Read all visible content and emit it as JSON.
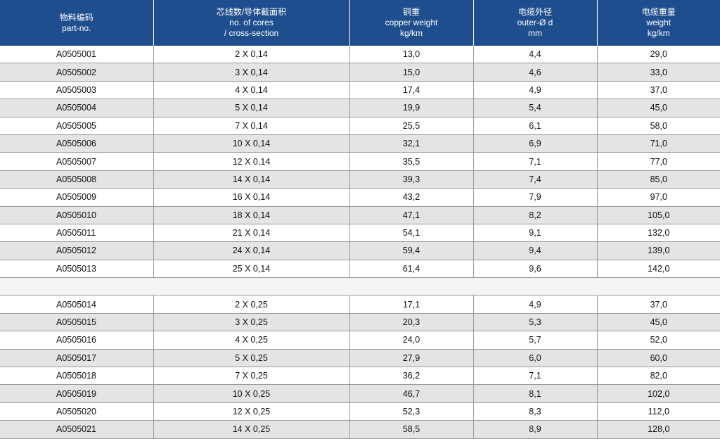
{
  "header": {
    "part": {
      "zh": "物料编码",
      "en1": "part-no.",
      "en2": ""
    },
    "cores": {
      "zh": "芯线数/导体截面积",
      "en1": "no. of cores",
      "en2": "/ cross-section"
    },
    "copper": {
      "zh": "铜重",
      "en1": "copper  weight",
      "en2": "kg/km"
    },
    "outer": {
      "zh": "电缆外径",
      "en1": "outer-Ø  d",
      "en2": "mm"
    },
    "weight": {
      "zh": "电缆重量",
      "en1": "weight",
      "en2": "kg/km"
    }
  },
  "group1": [
    [
      "A0505001",
      "2 X 0,14",
      "13,0",
      "4,4",
      "29,0"
    ],
    [
      "A0505002",
      "3 X 0,14",
      "15,0",
      "4,6",
      "33,0"
    ],
    [
      "A0505003",
      "4 X 0,14",
      "17,4",
      "4,9",
      "37,0"
    ],
    [
      "A0505004",
      "5 X 0,14",
      "19,9",
      "5,4",
      "45,0"
    ],
    [
      "A0505005",
      "7 X 0,14",
      "25,5",
      "6,1",
      "58,0"
    ],
    [
      "A0505006",
      "10 X 0,14",
      "32,1",
      "6,9",
      "71,0"
    ],
    [
      "A0505007",
      "12 X 0,14",
      "35,5",
      "7,1",
      "77,0"
    ],
    [
      "A0505008",
      "14 X 0,14",
      "39,3",
      "7,4",
      "85,0"
    ],
    [
      "A0505009",
      "16 X 0,14",
      "43,2",
      "7,9",
      "97,0"
    ],
    [
      "A0505010",
      "18 X 0,14",
      "47,1",
      "8,2",
      "105,0"
    ],
    [
      "A0505011",
      "21 X 0,14",
      "54,1",
      "9,1",
      "132,0"
    ],
    [
      "A0505012",
      "24 X 0,14",
      "59,4",
      "9,4",
      "139,0"
    ],
    [
      "A0505013",
      "25 X 0,14",
      "61,4",
      "9,6",
      "142,0"
    ]
  ],
  "group2": [
    [
      "A0505014",
      "2 X 0,25",
      "17,1",
      "4,9",
      "37,0"
    ],
    [
      "A0505015",
      "3 X 0,25",
      "20,3",
      "5,3",
      "45,0"
    ],
    [
      "A0505016",
      "4 X 0,25",
      "24,0",
      "5,7",
      "52,0"
    ],
    [
      "A0505017",
      "5 X 0,25",
      "27,9",
      "6,0",
      "60,0"
    ],
    [
      "A0505018",
      "7 X 0,25",
      "36,2",
      "7,1",
      "82,0"
    ],
    [
      "A0505019",
      "10 X 0,25",
      "46,7",
      "8,1",
      "102,0"
    ],
    [
      "A0505020",
      "12 X 0,25",
      "52,3",
      "8,3",
      "112,0"
    ],
    [
      "A0505021",
      "14 X 0,25",
      "58,5",
      "8,9",
      "128,0"
    ]
  ],
  "colors": {
    "header_bg": "#1f4e8e",
    "stripe": "#e4e4e4"
  }
}
